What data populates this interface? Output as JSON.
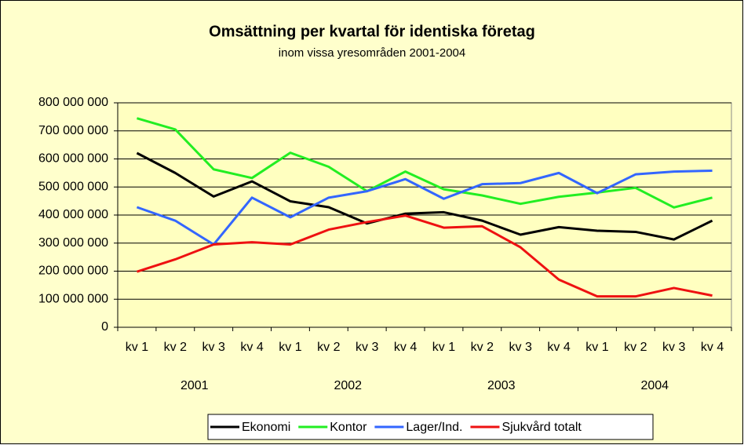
{
  "chart_data": {
    "type": "line",
    "title": "Omsättning per kvartal för identiska företag",
    "subtitle": "inom vissa yresområden 2001-2004",
    "categories": [
      "kv 1",
      "kv 2",
      "kv 3",
      "kv 4",
      "kv 1",
      "kv 2",
      "kv 3",
      "kv 4",
      "kv 1",
      "kv 2",
      "kv 3",
      "kv 4",
      "kv 1",
      "kv 2",
      "kv 3",
      "kv 4"
    ],
    "groups": [
      "2001",
      "2002",
      "2003",
      "2004"
    ],
    "ylim": [
      0,
      800000000
    ],
    "yticks": [
      0,
      {
        "value": 100000000,
        "label": "100 000 000"
      },
      {
        "value": 200000000,
        "label": "200 000 000"
      },
      {
        "value": 300000000,
        "label": "300 000 000"
      },
      {
        "value": 400000000,
        "label": "400 000 000"
      },
      {
        "value": 500000000,
        "label": "500 000 000"
      },
      {
        "value": 600000000,
        "label": "600 000 000"
      },
      {
        "value": 700000000,
        "label": "700 000 000"
      },
      {
        "value": 800000000,
        "label": "800 000 000"
      }
    ],
    "grid": true,
    "legend": "bottom",
    "series": [
      {
        "name": "Ekonomi",
        "color": "#000000",
        "values": [
          621000000,
          550000000,
          466000000,
          520000000,
          449000000,
          428000000,
          370000000,
          405000000,
          410000000,
          380000000,
          330000000,
          357000000,
          344000000,
          340000000,
          313000000,
          380000000
        ]
      },
      {
        "name": "Kontor",
        "color": "#22ee22",
        "values": [
          745000000,
          705000000,
          563000000,
          532000000,
          622000000,
          572000000,
          485000000,
          555000000,
          492000000,
          470000000,
          440000000,
          465000000,
          480000000,
          497000000,
          427000000,
          462000000
        ]
      },
      {
        "name": "Lager/Ind.",
        "color": "#3366ff",
        "values": [
          428000000,
          380000000,
          295000000,
          462000000,
          392000000,
          462000000,
          485000000,
          528000000,
          458000000,
          510000000,
          514000000,
          550000000,
          478000000,
          545000000,
          555000000,
          558000000
        ]
      },
      {
        "name": "Sjukvård totalt",
        "color": "#ee1111",
        "values": [
          198000000,
          242000000,
          295000000,
          303000000,
          295000000,
          348000000,
          375000000,
          398000000,
          355000000,
          360000000,
          285000000,
          170000000,
          110000000,
          110000000,
          140000000,
          113000000
        ]
      }
    ]
  }
}
